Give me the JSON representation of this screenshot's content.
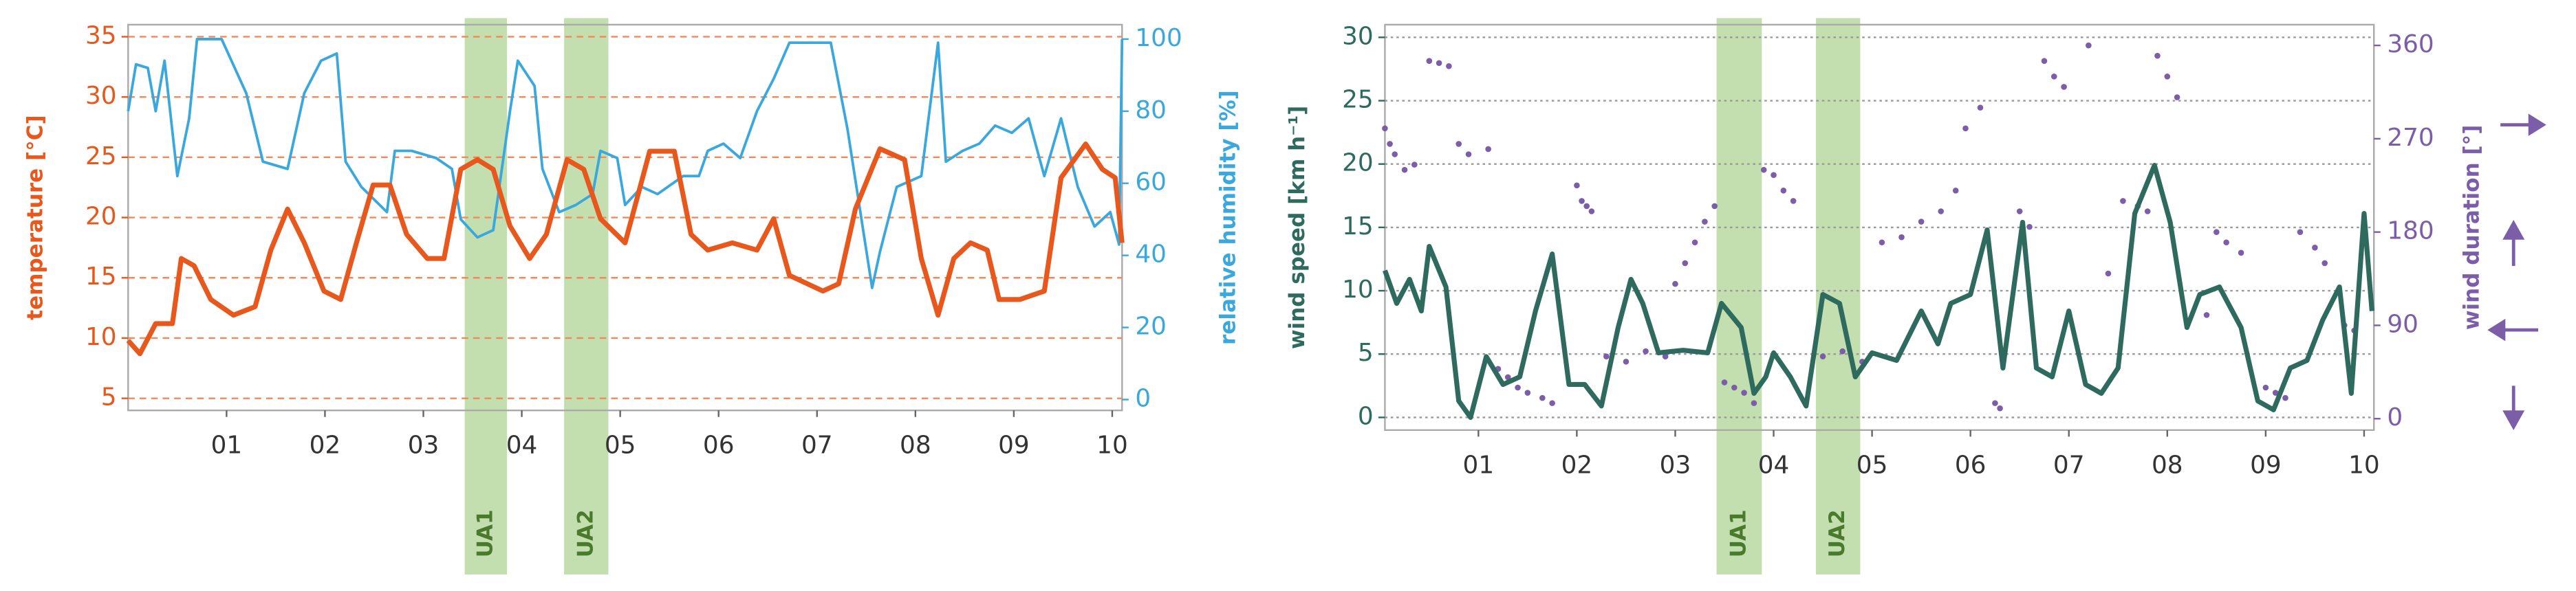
{
  "chart_data": [
    {
      "type": "line",
      "xlim": [
        0,
        10.1
      ],
      "xticks": [
        {
          "value": 1,
          "label": "01"
        },
        {
          "value": 2,
          "label": "02"
        },
        {
          "value": 3,
          "label": "03"
        },
        {
          "value": 4,
          "label": "04"
        },
        {
          "value": 5,
          "label": "05"
        },
        {
          "value": 6,
          "label": "06"
        },
        {
          "value": 7,
          "label": "07"
        },
        {
          "value": 8,
          "label": "08"
        },
        {
          "value": 9,
          "label": "09"
        },
        {
          "value": 10,
          "label": "10"
        }
      ],
      "ylim": [
        4,
        36
      ],
      "yticks": [
        5,
        10,
        15,
        20,
        25,
        30,
        35
      ],
      "y2lim": [
        -3,
        104
      ],
      "y2ticks": [
        0,
        20,
        40,
        60,
        80,
        100
      ],
      "ylabel": "temperature [°C]",
      "y2label": "relative humidity [%]",
      "grid": true,
      "grid_color": "#f08a5d",
      "band_color": "#a9d18e",
      "bands": [
        {
          "label": "UA1",
          "x": [
            3.42,
            3.85
          ]
        },
        {
          "label": "UA2",
          "x": [
            4.43,
            4.88
          ]
        }
      ],
      "series": [
        {
          "color": "#3aa8dc",
          "axis": "y2",
          "x": [
            0,
            0.08,
            0.2,
            0.28,
            0.37,
            0.5,
            0.62,
            0.7,
            0.95,
            1.2,
            1.37,
            1.62,
            1.79,
            1.96,
            2.12,
            2.21,
            2.37,
            2.63,
            2.71,
            2.88,
            3.13,
            3.29,
            3.38,
            3.55,
            3.71,
            3.88,
            3.96,
            4.13,
            4.21,
            4.38,
            4.55,
            4.72,
            4.8,
            4.97,
            5.05,
            5.22,
            5.38,
            5.64,
            5.8,
            5.89,
            6.05,
            6.22,
            6.39,
            6.56,
            6.72,
            6.97,
            7.14,
            7.31,
            7.56,
            7.64,
            7.81,
            8.06,
            8.23,
            8.31,
            8.48,
            8.65,
            8.81,
            8.98,
            9.15,
            9.31,
            9.48,
            9.65,
            9.82,
            9.98,
            10.07,
            10.1
          ],
          "values": [
            80,
            93,
            92,
            80,
            94,
            62,
            78,
            100,
            100,
            85,
            66,
            64,
            85,
            94,
            96,
            66,
            59,
            52,
            69,
            69,
            67,
            64,
            50,
            45,
            47,
            80,
            94,
            87,
            64,
            52,
            54,
            57,
            69,
            67,
            54,
            59,
            57,
            62,
            62,
            69,
            71,
            67,
            80,
            89,
            99,
            99,
            99,
            75,
            31,
            41,
            59,
            62,
            99,
            66,
            69,
            71,
            76,
            74,
            78,
            62,
            78,
            59,
            48,
            52,
            43,
            100
          ]
        },
        {
          "color": "#e8581c",
          "axis": "y",
          "x": [
            0,
            0.12,
            0.28,
            0.45,
            0.54,
            0.67,
            0.84,
            1.07,
            1.29,
            1.45,
            1.62,
            1.79,
            1.99,
            2.16,
            2.32,
            2.49,
            2.66,
            2.83,
            3.04,
            3.21,
            3.38,
            3.55,
            3.71,
            3.88,
            4.08,
            4.25,
            4.46,
            4.63,
            4.8,
            5.05,
            5.3,
            5.55,
            5.72,
            5.89,
            6.14,
            6.39,
            6.56,
            6.72,
            7.06,
            7.22,
            7.39,
            7.64,
            7.89,
            8.06,
            8.23,
            8.39,
            8.56,
            8.73,
            8.85,
            9.06,
            9.31,
            9.48,
            9.73,
            9.9,
            10.03,
            10.1
          ],
          "values": [
            9.8,
            8.7,
            11.2,
            11.2,
            16.6,
            16,
            13.2,
            11.9,
            12.6,
            17.3,
            20.7,
            17.9,
            13.9,
            13.2,
            17.9,
            22.7,
            22.7,
            18.6,
            16.6,
            16.6,
            24,
            24.8,
            24,
            19.3,
            16.6,
            18.6,
            24.8,
            24,
            19.9,
            17.9,
            25.5,
            25.5,
            18.6,
            17.3,
            17.9,
            17.3,
            19.9,
            15.2,
            13.9,
            14.5,
            20.7,
            25.7,
            24.8,
            16.6,
            11.9,
            16.6,
            17.9,
            17.3,
            13.2,
            13.2,
            13.9,
            23.3,
            26.1,
            24,
            23.3,
            17.9
          ]
        }
      ]
    },
    {
      "type": "line",
      "xlim": [
        0.05,
        10.1
      ],
      "xticks": [
        {
          "value": 1,
          "label": "01"
        },
        {
          "value": 2,
          "label": "02"
        },
        {
          "value": 3,
          "label": "03"
        },
        {
          "value": 4,
          "label": "04"
        },
        {
          "value": 5,
          "label": "05"
        },
        {
          "value": 6,
          "label": "06"
        },
        {
          "value": 7,
          "label": "07"
        },
        {
          "value": 8,
          "label": "08"
        },
        {
          "value": 9,
          "label": "09"
        },
        {
          "value": 10,
          "label": "10"
        }
      ],
      "ylim": [
        -1,
        31
      ],
      "yticks": [
        0,
        5,
        10,
        15,
        20,
        25,
        30
      ],
      "y2lim": [
        -11,
        380
      ],
      "y2ticks": [
        0,
        90,
        180,
        270,
        360
      ],
      "ylabel": "wind speed [km h⁻¹]",
      "y2label": "wind duration [°]",
      "grid": true,
      "grid_color": "#999999",
      "band_color": "#a9d18e",
      "bands": [
        {
          "label": "UA1",
          "x": [
            3.42,
            3.88
          ]
        },
        {
          "label": "UA2",
          "x": [
            4.43,
            4.88
          ]
        }
      ],
      "series": [
        {
          "color": "#7b5ea7",
          "axis": "y2",
          "type": "scatter",
          "x": [
            0.05,
            0.1,
            0.15,
            0.25,
            0.35,
            0.5,
            0.6,
            0.7,
            0.8,
            0.9,
            1.1,
            1.2,
            1.3,
            1.4,
            1.5,
            1.65,
            1.75,
            2,
            2.05,
            2.1,
            2.15,
            2.3,
            2.5,
            2.7,
            2.9,
            3,
            3.1,
            3.2,
            3.3,
            3.4,
            3.5,
            3.6,
            3.7,
            3.8,
            3.9,
            4,
            4.1,
            4.2,
            4.5,
            4.7,
            4.9,
            5.1,
            5.3,
            5.5,
            5.7,
            5.85,
            5.95,
            6.1,
            6.25,
            6.3,
            6.5,
            6.6,
            6.75,
            6.85,
            6.95,
            7.2,
            7.4,
            7.55,
            7.7,
            7.8,
            7.9,
            8,
            8.1,
            8.4,
            8.5,
            8.6,
            8.75,
            9,
            9.1,
            9.2,
            9.35,
            9.5,
            9.6,
            9.8,
            9.9,
            10
          ],
          "values": [
            280,
            265,
            255,
            240,
            245,
            345,
            343,
            340,
            265,
            255,
            260,
            48,
            40,
            30,
            25,
            20,
            15,
            225,
            210,
            205,
            200,
            60,
            55,
            65,
            60,
            130,
            150,
            170,
            190,
            205,
            35,
            30,
            25,
            15,
            240,
            235,
            220,
            210,
            60,
            65,
            55,
            170,
            175,
            190,
            200,
            220,
            280,
            300,
            15,
            10,
            200,
            185,
            345,
            330,
            320,
            360,
            140,
            210,
            205,
            200,
            350,
            330,
            310,
            100,
            180,
            170,
            160,
            30,
            25,
            20,
            180,
            165,
            150,
            90,
            85,
            190
          ]
        },
        {
          "color": "#2e6b5e",
          "axis": "y",
          "x": [
            0.05,
            0.17,
            0.3,
            0.42,
            0.5,
            0.67,
            0.8,
            0.92,
            1.08,
            1.25,
            1.42,
            1.58,
            1.75,
            1.92,
            2.08,
            2.25,
            2.42,
            2.55,
            2.67,
            2.83,
            3.08,
            3.33,
            3.47,
            3.67,
            3.8,
            3.92,
            4,
            4.17,
            4.33,
            4.5,
            4.67,
            4.83,
            5,
            5.25,
            5.5,
            5.67,
            5.8,
            6,
            6.17,
            6.33,
            6.53,
            6.67,
            6.83,
            7,
            7.17,
            7.33,
            7.5,
            7.67,
            7.87,
            8.03,
            8.2,
            8.33,
            8.53,
            8.75,
            8.92,
            9.08,
            9.25,
            9.42,
            9.58,
            9.75,
            9.87,
            10,
            10.08
          ],
          "values": [
            11.6,
            9,
            10.9,
            8.4,
            13.5,
            10.3,
            1.3,
            0,
            4.8,
            2.6,
            3.2,
            8.4,
            12.9,
            2.6,
            2.6,
            0.9,
            7.1,
            10.9,
            9,
            5.1,
            5.3,
            5.1,
            9,
            7.1,
            1.9,
            3.2,
            5.1,
            3.2,
            0.9,
            9.7,
            9,
            3.2,
            5.1,
            4.5,
            8.4,
            5.8,
            9,
            9.7,
            14.8,
            3.9,
            15.4,
            3.9,
            3.2,
            8.4,
            2.6,
            1.9,
            3.9,
            16.1,
            19.9,
            15.4,
            7.1,
            9.7,
            10.3,
            7.1,
            1.3,
            0.6,
            3.9,
            4.5,
            7.7,
            10.3,
            1.9,
            16.1,
            8.4
          ]
        }
      ]
    }
  ]
}
